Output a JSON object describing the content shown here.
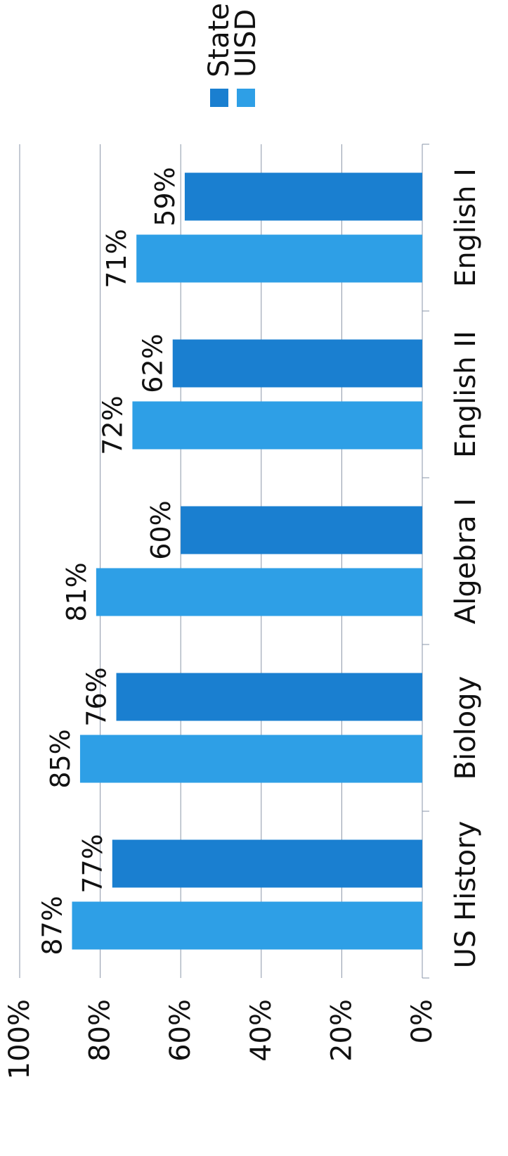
{
  "chart_data": {
    "type": "bar",
    "orientation": "rotated-90",
    "categories": [
      "English I",
      "English II",
      "Algebra I",
      "Biology",
      "US History"
    ],
    "series": [
      {
        "name": "UISD",
        "values": [
          71,
          72,
          81,
          85,
          87
        ],
        "labels": [
          "71%",
          "72%",
          "81%",
          "85%",
          "87%"
        ],
        "color": "#2e9fe6"
      },
      {
        "name": "State",
        "values": [
          59,
          62,
          60,
          76,
          77
        ],
        "labels": [
          "59%",
          "62%",
          "60%",
          "76%",
          "77%"
        ],
        "color": "#1a7fd0"
      }
    ],
    "ylim": [
      0,
      100
    ],
    "yticks": [
      0,
      20,
      40,
      60,
      80,
      100
    ],
    "ytick_labels": [
      "0%",
      "20%",
      "40%",
      "60%",
      "80%",
      "100%"
    ],
    "grid": true,
    "legend_position": "top-right"
  }
}
